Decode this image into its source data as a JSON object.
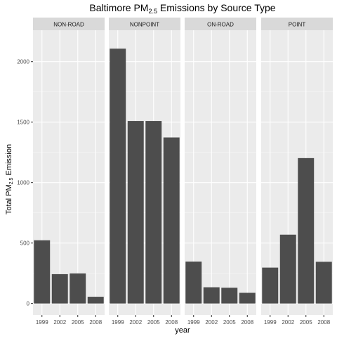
{
  "chart_data": {
    "type": "bar",
    "title_main": "Baltimore PM",
    "title_sub": "2.5",
    "title_rest": " Emissions by Source Type",
    "xlabel": "year",
    "ylabel_main": "Total PM",
    "ylabel_sub": "2.5",
    "ylabel_rest": " Emission",
    "ylim": [
      -95,
      2260
    ],
    "yticks": [
      0,
      500,
      1000,
      1500,
      2000
    ],
    "categories": [
      "1999",
      "2002",
      "2005",
      "2008"
    ],
    "facets": [
      {
        "name": "NON-ROAD",
        "values": [
          522.9,
          242.9,
          248.9,
          55.8
        ]
      },
      {
        "name": "NONPOINT",
        "values": [
          2107.6,
          1509.5,
          1509.5,
          1373.2
        ]
      },
      {
        "name": "ON-ROAD",
        "values": [
          346.8,
          134.3,
          130.4,
          88.3
        ]
      },
      {
        "name": "POINT",
        "values": [
          296.8,
          569.3,
          1202.5,
          344.98
        ]
      }
    ],
    "colors": {
      "bar": "#4d4d4d",
      "panel": "#ebebeb",
      "strip": "#d9d9d9",
      "grid_major": "#ffffff",
      "axis_text": "#4d4d4d"
    }
  }
}
